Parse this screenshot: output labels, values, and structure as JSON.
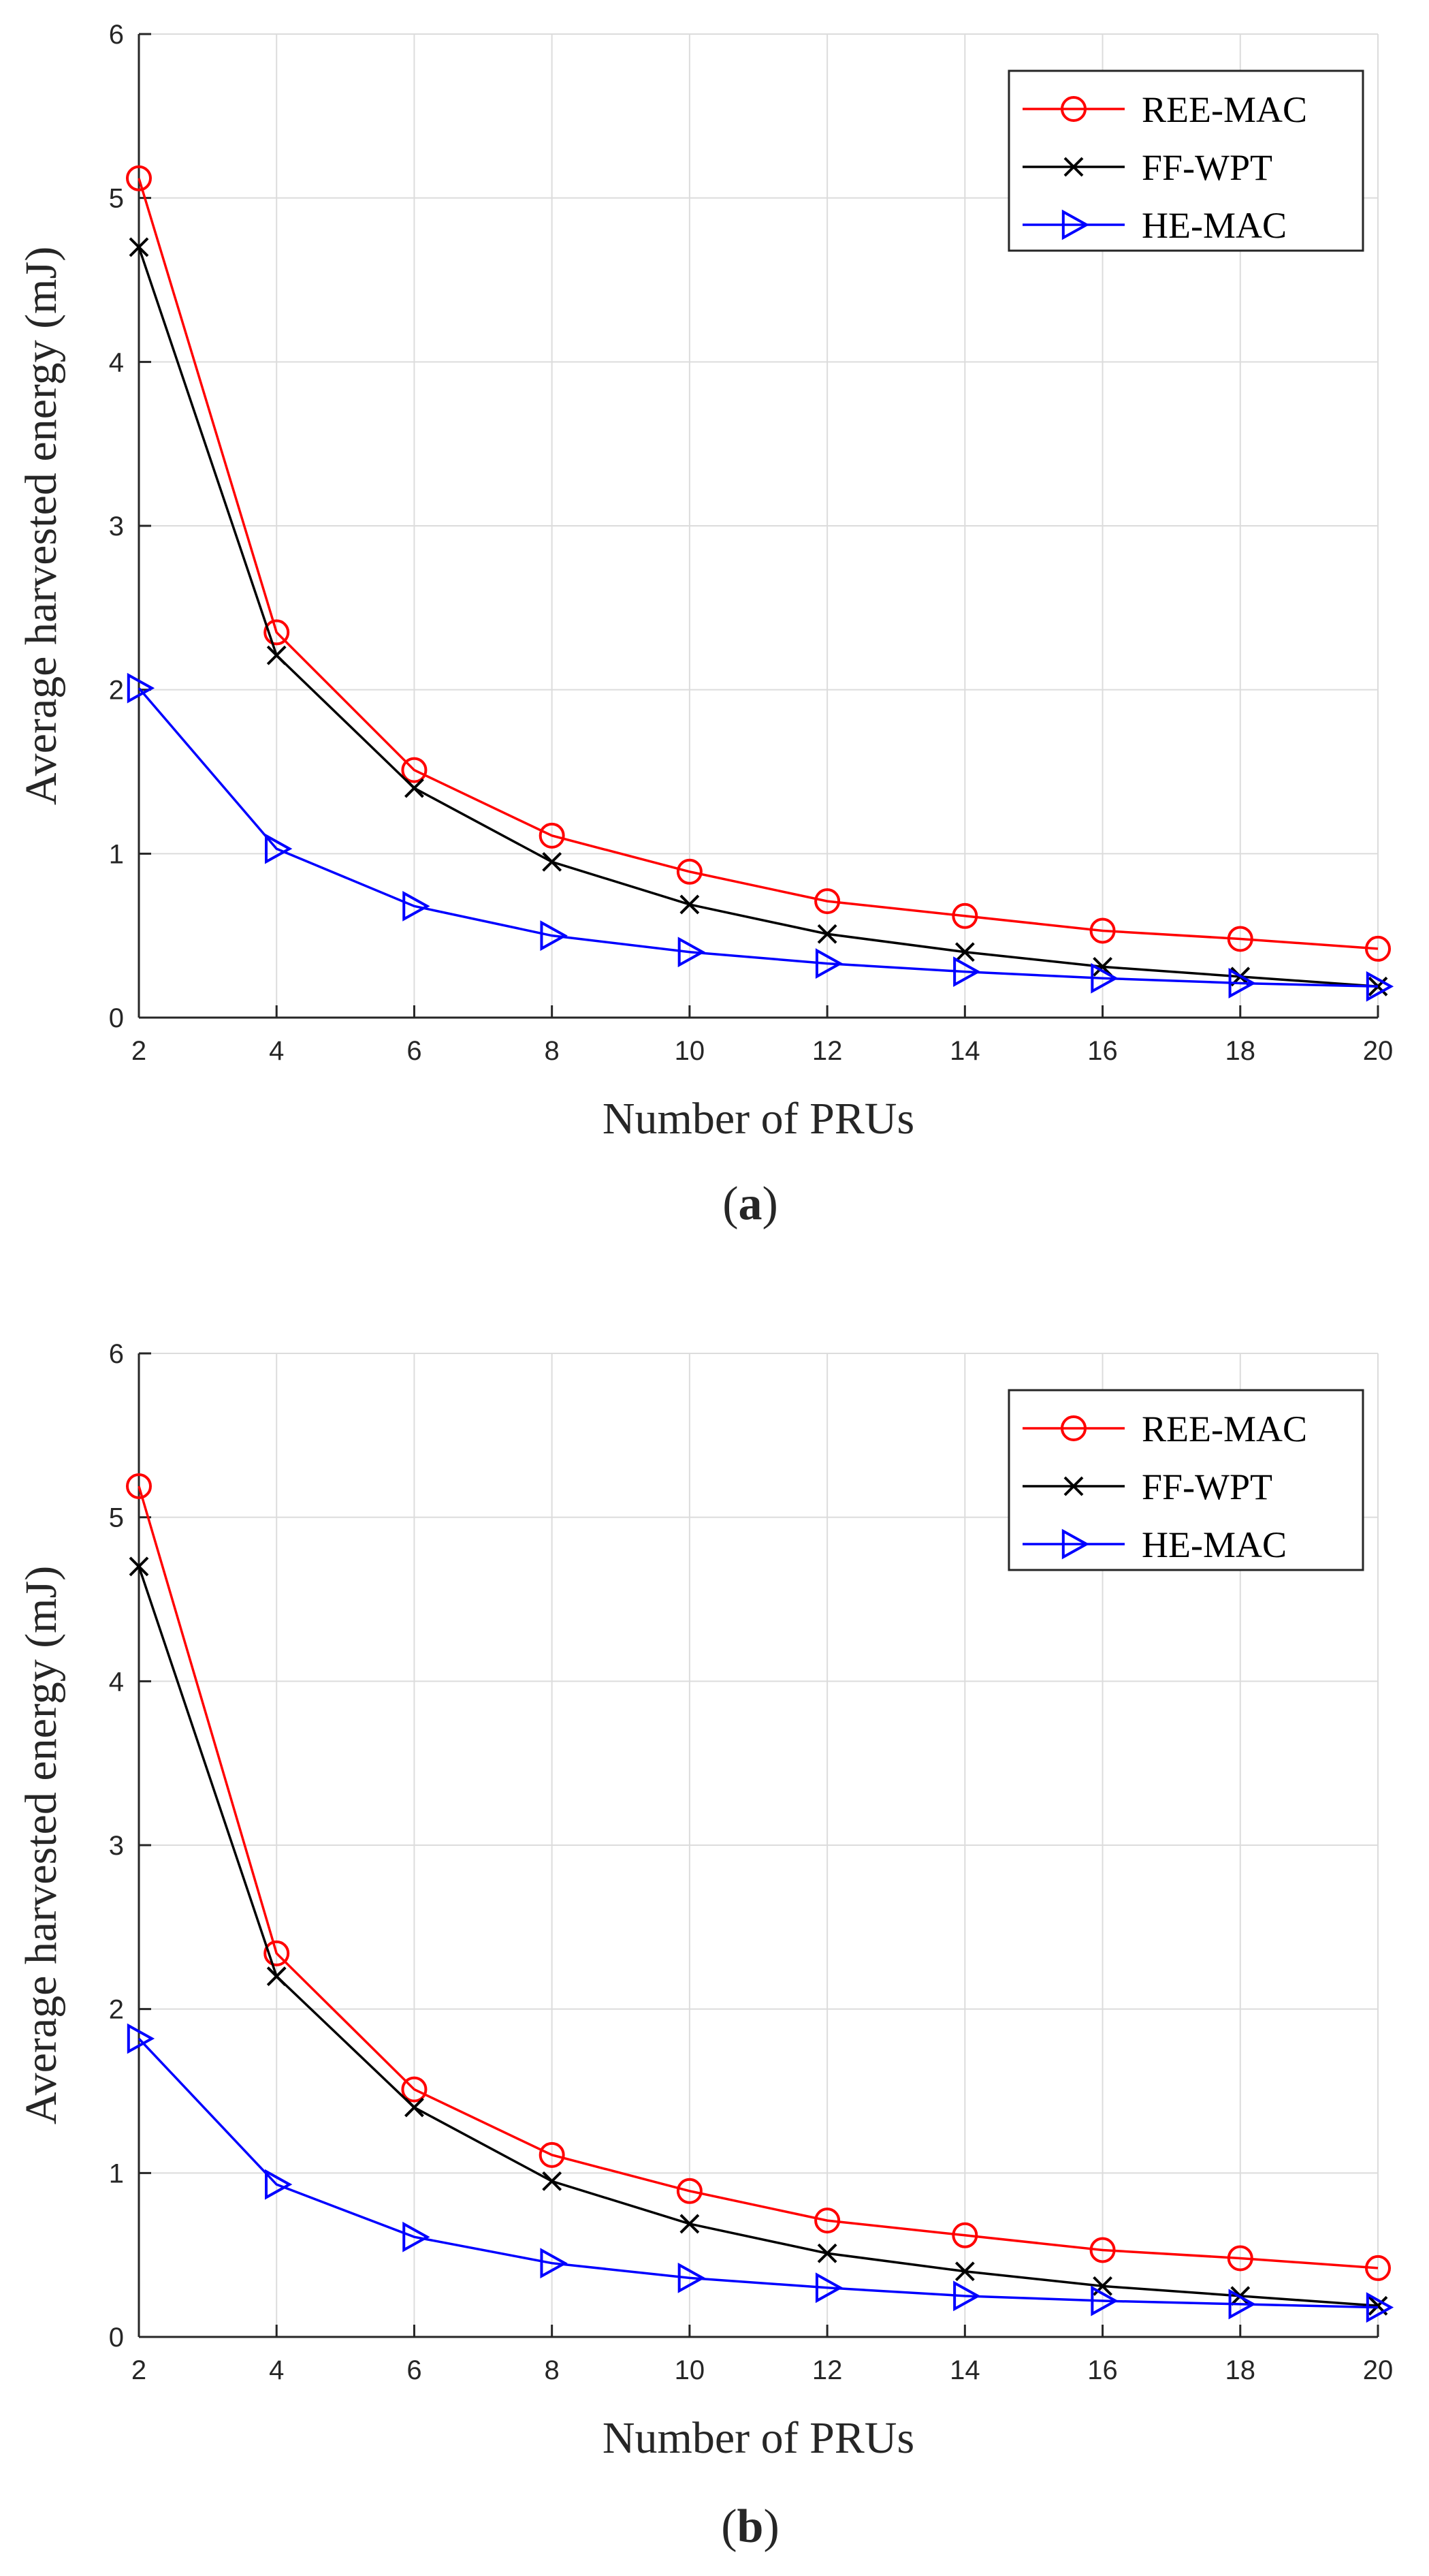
{
  "chart_data": [
    {
      "type": "line",
      "panel": "a",
      "caption": {
        "open": "(",
        "letter": "a",
        "close": ")"
      },
      "xlabel": "Number of PRUs",
      "ylabel": "Average harvested energy (mJ)",
      "xlim": [
        2,
        20
      ],
      "ylim": [
        0,
        6
      ],
      "xticks": [
        2,
        4,
        6,
        8,
        10,
        12,
        14,
        16,
        18,
        20
      ],
      "yticks": [
        0,
        1,
        2,
        3,
        4,
        5,
        6
      ],
      "grid": true,
      "legend_position": "top-right",
      "x": [
        2,
        4,
        6,
        8,
        10,
        12,
        14,
        16,
        18,
        20
      ],
      "series": [
        {
          "name": "REE-MAC",
          "color": "#ff0000",
          "marker": "circle",
          "values": [
            5.12,
            2.35,
            1.51,
            1.11,
            0.89,
            0.71,
            0.62,
            0.53,
            0.48,
            0.42
          ]
        },
        {
          "name": "FF-WPT",
          "color": "#000000",
          "marker": "x",
          "values": [
            4.7,
            2.21,
            1.4,
            0.95,
            0.69,
            0.51,
            0.4,
            0.31,
            0.25,
            0.19
          ]
        },
        {
          "name": "HE-MAC",
          "color": "#0000ff",
          "marker": "triangle-right",
          "values": [
            2.01,
            1.03,
            0.68,
            0.5,
            0.4,
            0.33,
            0.28,
            0.24,
            0.21,
            0.19
          ]
        }
      ]
    },
    {
      "type": "line",
      "panel": "b",
      "caption": {
        "open": "(",
        "letter": "b",
        "close": ")"
      },
      "xlabel": "Number of PRUs",
      "ylabel": "Average harvested energy (mJ)",
      "xlim": [
        2,
        20
      ],
      "ylim": [
        0,
        6
      ],
      "xticks": [
        2,
        4,
        6,
        8,
        10,
        12,
        14,
        16,
        18,
        20
      ],
      "yticks": [
        0,
        1,
        2,
        3,
        4,
        5,
        6
      ],
      "grid": true,
      "legend_position": "top-right",
      "x": [
        2,
        4,
        6,
        8,
        10,
        12,
        14,
        16,
        18,
        20
      ],
      "series": [
        {
          "name": "REE-MAC",
          "color": "#ff0000",
          "marker": "circle",
          "values": [
            5.19,
            2.34,
            1.51,
            1.11,
            0.89,
            0.71,
            0.62,
            0.53,
            0.48,
            0.42
          ]
        },
        {
          "name": "FF-WPT",
          "color": "#000000",
          "marker": "x",
          "values": [
            4.7,
            2.2,
            1.4,
            0.95,
            0.69,
            0.51,
            0.4,
            0.31,
            0.25,
            0.19
          ]
        },
        {
          "name": "HE-MAC",
          "color": "#0000ff",
          "marker": "triangle-right",
          "values": [
            1.82,
            0.93,
            0.61,
            0.45,
            0.36,
            0.3,
            0.25,
            0.22,
            0.2,
            0.18
          ]
        }
      ]
    }
  ]
}
